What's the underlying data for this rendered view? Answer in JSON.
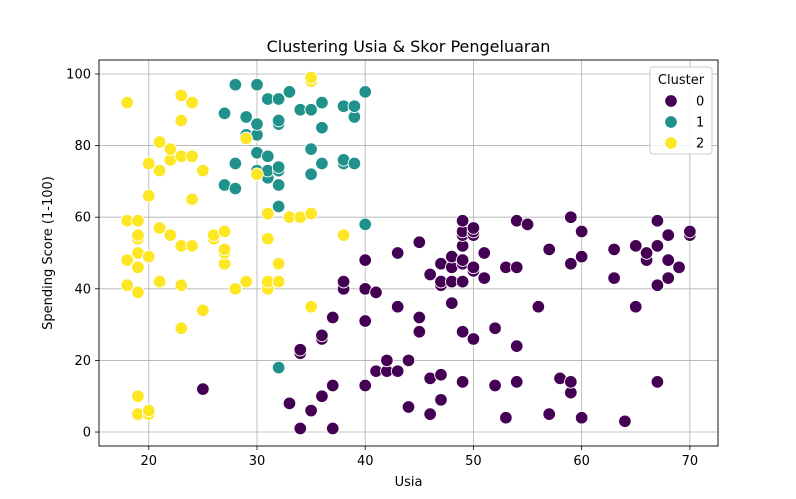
{
  "chart_data": {
    "type": "scatter",
    "title": "Clustering Usia & Skor Pengeluaran",
    "xlabel": "Usia",
    "ylabel": "Spending Score (1-100)",
    "xlim": [
      15.4,
      72.6
    ],
    "ylim": [
      -3.9,
      103.9
    ],
    "xticks": [
      20,
      30,
      40,
      50,
      60,
      70
    ],
    "yticks": [
      0,
      20,
      40,
      60,
      80,
      100
    ],
    "grid": true,
    "legend": {
      "title": "Cluster",
      "placement": "top-right"
    },
    "series": [
      {
        "name": "0",
        "color": "#440154",
        "points": [
          [
            25,
            12
          ],
          [
            34,
            1
          ],
          [
            34,
            22
          ],
          [
            34,
            23
          ],
          [
            33,
            8
          ],
          [
            35,
            6
          ],
          [
            36,
            10
          ],
          [
            36,
            26
          ],
          [
            36,
            27
          ],
          [
            37,
            1
          ],
          [
            37,
            13
          ],
          [
            37,
            32
          ],
          [
            38,
            40
          ],
          [
            38,
            42
          ],
          [
            40,
            13
          ],
          [
            40,
            31
          ],
          [
            40,
            40
          ],
          [
            40,
            48
          ],
          [
            41,
            17
          ],
          [
            41,
            39
          ],
          [
            42,
            17
          ],
          [
            42,
            20
          ],
          [
            43,
            17
          ],
          [
            43,
            35
          ],
          [
            43,
            50
          ],
          [
            44,
            7
          ],
          [
            44,
            20
          ],
          [
            45,
            28
          ],
          [
            45,
            32
          ],
          [
            45,
            53
          ],
          [
            46,
            5
          ],
          [
            46,
            15
          ],
          [
            46,
            44
          ],
          [
            47,
            9
          ],
          [
            47,
            16
          ],
          [
            47,
            41
          ],
          [
            47,
            42
          ],
          [
            47,
            47
          ],
          [
            48,
            36
          ],
          [
            48,
            42
          ],
          [
            48,
            46
          ],
          [
            48,
            49
          ],
          [
            49,
            14
          ],
          [
            49,
            28
          ],
          [
            49,
            42
          ],
          [
            49,
            47
          ],
          [
            49,
            48
          ],
          [
            49,
            52
          ],
          [
            49,
            55
          ],
          [
            49,
            56
          ],
          [
            49,
            59
          ],
          [
            50,
            26
          ],
          [
            50,
            45
          ],
          [
            50,
            46
          ],
          [
            50,
            55
          ],
          [
            50,
            56
          ],
          [
            50,
            57
          ],
          [
            51,
            43
          ],
          [
            51,
            50
          ],
          [
            52,
            13
          ],
          [
            52,
            29
          ],
          [
            53,
            4
          ],
          [
            53,
            46
          ],
          [
            54,
            14
          ],
          [
            54,
            24
          ],
          [
            54,
            46
          ],
          [
            54,
            59
          ],
          [
            55,
            58
          ],
          [
            56,
            35
          ],
          [
            57,
            5
          ],
          [
            57,
            51
          ],
          [
            58,
            15
          ],
          [
            59,
            11
          ],
          [
            59,
            14
          ],
          [
            59,
            47
          ],
          [
            59,
            60
          ],
          [
            60,
            4
          ],
          [
            60,
            49
          ],
          [
            60,
            56
          ],
          [
            63,
            43
          ],
          [
            63,
            51
          ],
          [
            64,
            3
          ],
          [
            65,
            35
          ],
          [
            65,
            52
          ],
          [
            66,
            48
          ],
          [
            66,
            50
          ],
          [
            67,
            14
          ],
          [
            67,
            41
          ],
          [
            67,
            52
          ],
          [
            67,
            59
          ],
          [
            68,
            43
          ],
          [
            68,
            48
          ],
          [
            68,
            55
          ],
          [
            69,
            46
          ],
          [
            70,
            55
          ],
          [
            70,
            56
          ]
        ]
      },
      {
        "name": "1",
        "color": "#21918c",
        "points": [
          [
            27,
            69
          ],
          [
            27,
            89
          ],
          [
            28,
            68
          ],
          [
            28,
            75
          ],
          [
            28,
            97
          ],
          [
            29,
            83
          ],
          [
            29,
            88
          ],
          [
            30,
            73
          ],
          [
            30,
            78
          ],
          [
            30,
            83
          ],
          [
            30,
            86
          ],
          [
            30,
            97
          ],
          [
            31,
            71
          ],
          [
            31,
            73
          ],
          [
            31,
            77
          ],
          [
            31,
            93
          ],
          [
            32,
            18
          ],
          [
            32,
            63
          ],
          [
            32,
            69
          ],
          [
            32,
            73
          ],
          [
            32,
            74
          ],
          [
            32,
            86
          ],
          [
            32,
            87
          ],
          [
            32,
            93
          ],
          [
            33,
            95
          ],
          [
            34,
            90
          ],
          [
            35,
            72
          ],
          [
            35,
            79
          ],
          [
            35,
            90
          ],
          [
            36,
            85
          ],
          [
            36,
            92
          ],
          [
            36,
            75
          ],
          [
            38,
            75
          ],
          [
            38,
            76
          ],
          [
            38,
            91
          ],
          [
            39,
            75
          ],
          [
            39,
            88
          ],
          [
            39,
            91
          ],
          [
            40,
            58
          ],
          [
            40,
            95
          ]
        ]
      },
      {
        "name": "2",
        "color": "#fde725",
        "points": [
          [
            18,
            41
          ],
          [
            18,
            48
          ],
          [
            18,
            59
          ],
          [
            18,
            92
          ],
          [
            19,
            5
          ],
          [
            19,
            10
          ],
          [
            19,
            39
          ],
          [
            19,
            46
          ],
          [
            19,
            50
          ],
          [
            19,
            54
          ],
          [
            19,
            55
          ],
          [
            19,
            59
          ],
          [
            20,
            5
          ],
          [
            20,
            6
          ],
          [
            20,
            49
          ],
          [
            20,
            66
          ],
          [
            20,
            75
          ],
          [
            21,
            42
          ],
          [
            21,
            57
          ],
          [
            21,
            73
          ],
          [
            21,
            81
          ],
          [
            22,
            55
          ],
          [
            22,
            76
          ],
          [
            22,
            79
          ],
          [
            23,
            29
          ],
          [
            23,
            41
          ],
          [
            23,
            52
          ],
          [
            23,
            77
          ],
          [
            23,
            87
          ],
          [
            23,
            94
          ],
          [
            24,
            52
          ],
          [
            24,
            65
          ],
          [
            24,
            77
          ],
          [
            24,
            92
          ],
          [
            25,
            34
          ],
          [
            25,
            73
          ],
          [
            26,
            54
          ],
          [
            26,
            55
          ],
          [
            27,
            47
          ],
          [
            27,
            50
          ],
          [
            27,
            51
          ],
          [
            27,
            56
          ],
          [
            28,
            40
          ],
          [
            29,
            42
          ],
          [
            29,
            82
          ],
          [
            30,
            72
          ],
          [
            31,
            40
          ],
          [
            31,
            42
          ],
          [
            31,
            54
          ],
          [
            31,
            61
          ],
          [
            32,
            42
          ],
          [
            32,
            47
          ],
          [
            33,
            60
          ],
          [
            34,
            60
          ],
          [
            35,
            35
          ],
          [
            35,
            61
          ],
          [
            35,
            98
          ],
          [
            35,
            99
          ],
          [
            38,
            55
          ]
        ]
      }
    ]
  }
}
